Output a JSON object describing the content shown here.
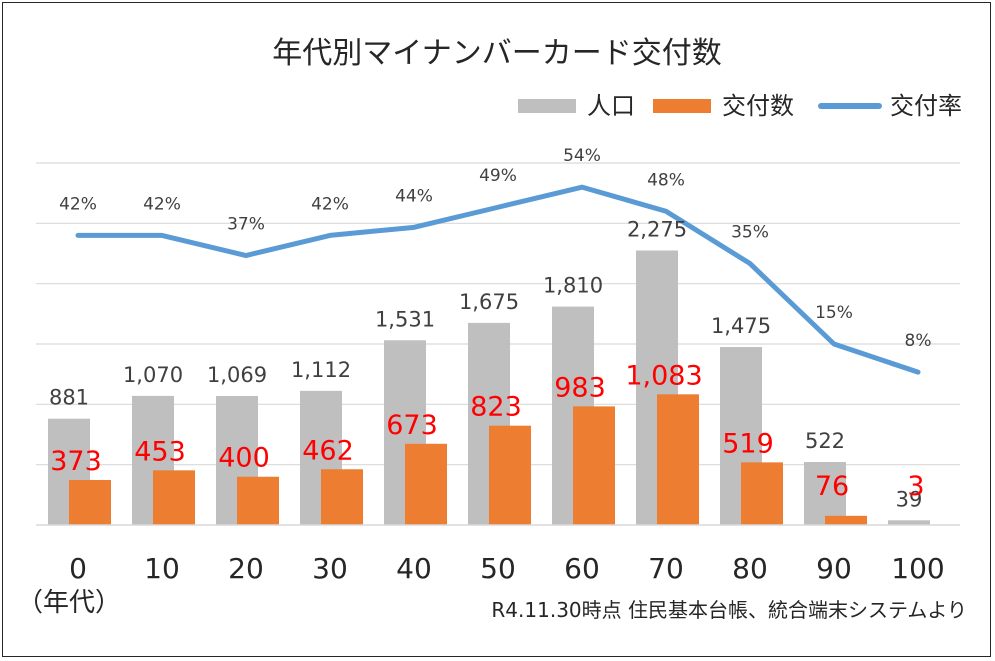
{
  "chart_data": {
    "type": "bar",
    "title": "年代別マイナンバーカード交付数",
    "categories": [
      "0",
      "10",
      "20",
      "30",
      "40",
      "50",
      "60",
      "70",
      "80",
      "90",
      "100"
    ],
    "series": [
      {
        "name": "人口",
        "kind": "bar",
        "color": "#bfbfbf",
        "values": [
          881,
          1070,
          1069,
          1112,
          1531,
          1675,
          1810,
          2275,
          1475,
          522,
          39
        ],
        "labels": [
          "881",
          "1,070",
          "1,069",
          "1,112",
          "1,531",
          "1,675",
          "1,810",
          "2,275",
          "1,475",
          "522",
          "39"
        ]
      },
      {
        "name": "交付数",
        "kind": "bar",
        "color": "#ed7d31",
        "values": [
          373,
          453,
          400,
          462,
          673,
          823,
          983,
          1083,
          519,
          76,
          3
        ],
        "labels": [
          "373",
          "453",
          "400",
          "462",
          "673",
          "823",
          "983",
          "1,083",
          "519",
          "76",
          "3"
        ]
      },
      {
        "name": "交付率",
        "kind": "line",
        "color": "#5b9bd5",
        "values": [
          0.42,
          0.42,
          0.37,
          0.42,
          0.44,
          0.49,
          0.54,
          0.48,
          0.35,
          0.15,
          0.08
        ],
        "labels": [
          "42%",
          "42%",
          "37%",
          "42%",
          "44%",
          "49%",
          "54%",
          "48%",
          "35%",
          "15%",
          "8%"
        ]
      }
    ],
    "ylim": [
      0,
      3000
    ],
    "y2lim": [
      -0.3,
      0.6
    ],
    "grid": true,
    "legend": "top-right",
    "x_unit_label": "（年代）",
    "footnote": "R4.11.30時点  住民基本台帳、統合端末システムより"
  }
}
